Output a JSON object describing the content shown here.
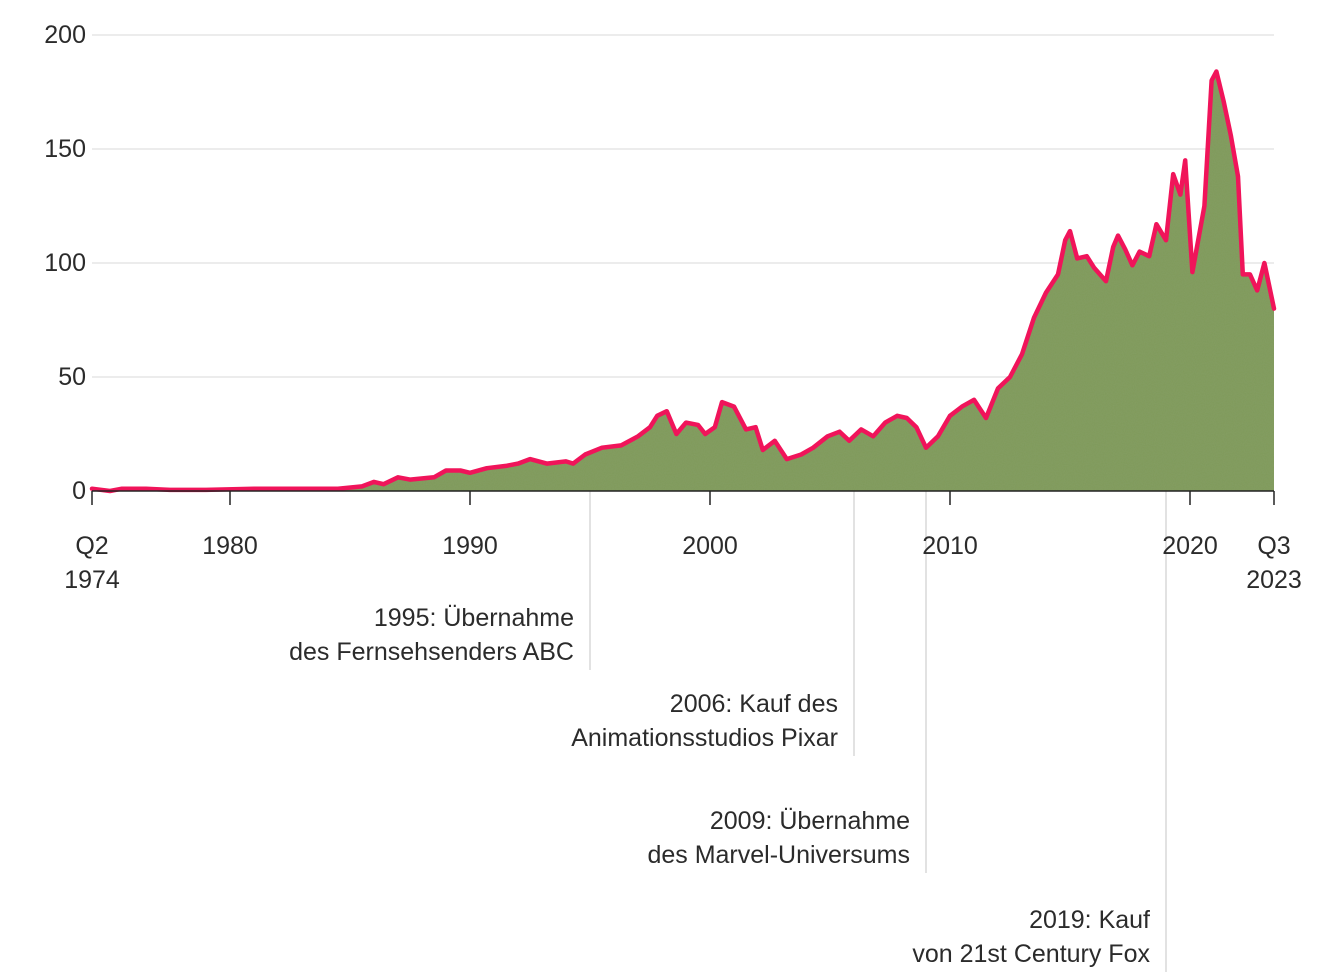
{
  "chart_data": {
    "type": "area",
    "title": "",
    "xlabel": "",
    "ylabel": "",
    "ylim": [
      0,
      200
    ],
    "grid": true,
    "colors": {
      "line": "#f0145a",
      "fill": "#7f9a5a"
    },
    "y_ticks": [
      {
        "value": 0,
        "label": "0"
      },
      {
        "value": 50,
        "label": "50"
      },
      {
        "value": 100,
        "label": "100"
      },
      {
        "value": 150,
        "label": "150"
      },
      {
        "value": 200,
        "label": "200"
      }
    ],
    "x_ticks": [
      {
        "value": 1974.25,
        "label": "Q2",
        "label2": "1974"
      },
      {
        "value": 1980,
        "label": "1980"
      },
      {
        "value": 1990,
        "label": "1990"
      },
      {
        "value": 2000,
        "label": "2000"
      },
      {
        "value": 2010,
        "label": "2010"
      },
      {
        "value": 2020,
        "label": "2020"
      },
      {
        "value": 2023.5,
        "label": "Q3",
        "label2": "2023"
      }
    ],
    "series": [
      {
        "points": [
          [
            1974.25,
            1
          ],
          [
            1975,
            0
          ],
          [
            1975.5,
            1
          ],
          [
            1976.5,
            1
          ],
          [
            1977.5,
            0.5
          ],
          [
            1979,
            0.5
          ],
          [
            1981,
            1
          ],
          [
            1983,
            1
          ],
          [
            1984.5,
            1
          ],
          [
            1985.5,
            2
          ],
          [
            1986,
            4
          ],
          [
            1986.4,
            3
          ],
          [
            1987,
            6
          ],
          [
            1987.5,
            5
          ],
          [
            1988.5,
            6
          ],
          [
            1989,
            9
          ],
          [
            1989.6,
            9
          ],
          [
            1990,
            8
          ],
          [
            1990.7,
            10
          ],
          [
            1991.5,
            11
          ],
          [
            1992,
            12
          ],
          [
            1992.5,
            14
          ],
          [
            1993.2,
            12
          ],
          [
            1994,
            13
          ],
          [
            1994.3,
            12
          ],
          [
            1994.8,
            16
          ],
          [
            1995.5,
            19
          ],
          [
            1996.3,
            20
          ],
          [
            1997,
            24
          ],
          [
            1997.5,
            28
          ],
          [
            1997.8,
            33
          ],
          [
            1998.2,
            35
          ],
          [
            1998.6,
            25
          ],
          [
            1999,
            30
          ],
          [
            1999.5,
            29
          ],
          [
            1999.8,
            25
          ],
          [
            2000.2,
            28
          ],
          [
            2000.5,
            39
          ],
          [
            2001,
            37
          ],
          [
            2001.5,
            27
          ],
          [
            2001.9,
            28
          ],
          [
            2002.2,
            18
          ],
          [
            2002.7,
            22
          ],
          [
            2003.2,
            14
          ],
          [
            2003.8,
            16
          ],
          [
            2004.3,
            19
          ],
          [
            2004.9,
            24
          ],
          [
            2005.4,
            26
          ],
          [
            2005.8,
            22
          ],
          [
            2006.3,
            27
          ],
          [
            2006.8,
            24
          ],
          [
            2007.3,
            30
          ],
          [
            2007.8,
            33
          ],
          [
            2008.2,
            32
          ],
          [
            2008.6,
            28
          ],
          [
            2009,
            19
          ],
          [
            2009.5,
            24
          ],
          [
            2010,
            33
          ],
          [
            2010.5,
            37
          ],
          [
            2011,
            40
          ],
          [
            2011.5,
            32
          ],
          [
            2012,
            45
          ],
          [
            2012.5,
            50
          ],
          [
            2013,
            60
          ],
          [
            2013.5,
            76
          ],
          [
            2014,
            87
          ],
          [
            2014.5,
            95
          ],
          [
            2014.8,
            110
          ],
          [
            2015,
            114
          ],
          [
            2015.3,
            102
          ],
          [
            2015.7,
            103
          ],
          [
            2016,
            98
          ],
          [
            2016.5,
            92
          ],
          [
            2016.8,
            107
          ],
          [
            2017,
            112
          ],
          [
            2017.3,
            106
          ],
          [
            2017.6,
            99
          ],
          [
            2017.9,
            105
          ],
          [
            2018.3,
            103
          ],
          [
            2018.6,
            117
          ],
          [
            2019,
            110
          ],
          [
            2019.3,
            139
          ],
          [
            2019.6,
            130
          ],
          [
            2019.8,
            145
          ],
          [
            2020.1,
            96
          ],
          [
            2020.6,
            125
          ],
          [
            2020.9,
            180
          ],
          [
            2021.1,
            184
          ],
          [
            2021.4,
            171
          ],
          [
            2021.7,
            156
          ],
          [
            2022,
            138
          ],
          [
            2022.2,
            95
          ],
          [
            2022.5,
            95
          ],
          [
            2022.8,
            88
          ],
          [
            2023.1,
            100
          ],
          [
            2023.5,
            80
          ]
        ]
      }
    ],
    "annotations": [
      {
        "x": 1995,
        "lines": [
          "1995: Übernahme",
          "des Fernsehsenders ABC"
        ]
      },
      {
        "x": 2006,
        "lines": [
          "2006: Kauf des",
          "Animationsstudios Pixar"
        ]
      },
      {
        "x": 2009,
        "lines": [
          "2009: Übernahme",
          "des Marvel-Universums"
        ]
      },
      {
        "x": 2019,
        "lines": [
          "2019: Kauf",
          "von 21st Century Fox"
        ]
      }
    ]
  }
}
